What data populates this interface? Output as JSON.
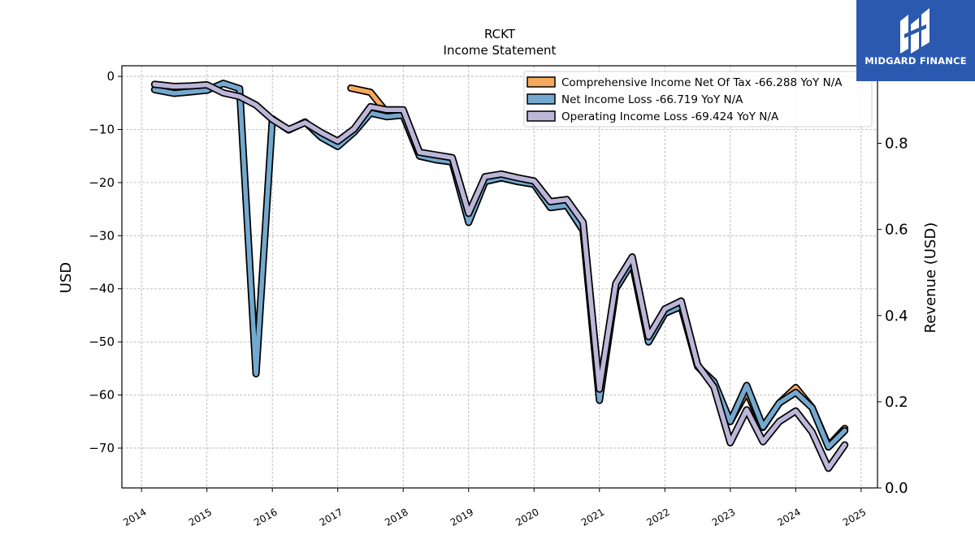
{
  "brand": {
    "name": "MIDGARD FINANCE",
    "logo_color": "#2b59b0"
  },
  "chart_data": {
    "type": "line",
    "title": "RCKT",
    "subtitle": "Income Statement",
    "ylabel": "USD",
    "y2label": "Revenue (USD)",
    "ylim": [
      -77.5,
      2
    ],
    "y2lim": [
      0,
      0.98
    ],
    "xlim": [
      2013.7,
      2025.25
    ],
    "yticks": [
      0,
      -10,
      -20,
      -30,
      -40,
      -50,
      -60,
      -70
    ],
    "y2ticks": [
      0.0,
      0.2,
      0.4,
      0.6,
      0.8
    ],
    "xticks": [
      2014,
      2015,
      2016,
      2017,
      2018,
      2019,
      2020,
      2021,
      2022,
      2023,
      2024,
      2025
    ],
    "grid": true,
    "legend_position": "top-right",
    "series": [
      {
        "name": "Comprehensive Income Net Of Tax  -66.288 YoY N/A",
        "color": "#f6a95c",
        "x": [
          2017.2,
          2017.5,
          2017.75,
          2018.0,
          2018.25,
          2018.5,
          2018.75,
          2019.0,
          2019.25,
          2019.5,
          2019.75,
          2020.0,
          2020.25,
          2020.5,
          2020.75,
          2021.0,
          2021.25,
          2021.5,
          2021.75,
          2022.0,
          2022.25,
          2022.5,
          2022.75,
          2023.0,
          2023.25,
          2023.5,
          2023.75,
          2024.0,
          2024.25,
          2024.5,
          2024.75
        ],
        "values": [
          -2.2,
          -3.0,
          -6.8,
          -7.3,
          -15.0,
          -15.7,
          -16.1,
          -27.0,
          -19.8,
          -19.1,
          -19.8,
          -20.3,
          -24.7,
          -24.3,
          -29.0,
          -60.5,
          -40.0,
          -35.0,
          -50.0,
          -44.6,
          -43.3,
          -54.6,
          -57.8,
          -65.0,
          -59.4,
          -66.1,
          -61.5,
          -58.6,
          -62.4,
          -69.6,
          -66.3
        ]
      },
      {
        "name": "Net Income Loss  -66.719 YoY N/A",
        "color": "#74a9cf",
        "x": [
          2014.2,
          2014.5,
          2014.75,
          2015.0,
          2015.25,
          2015.5,
          2015.75,
          2016.0,
          2016.25,
          2016.5,
          2016.75,
          2017.0,
          2017.25,
          2017.5,
          2017.75,
          2018.0,
          2018.25,
          2018.5,
          2018.75,
          2019.0,
          2019.25,
          2019.5,
          2019.75,
          2020.0,
          2020.25,
          2020.5,
          2020.75,
          2021.0,
          2021.25,
          2021.5,
          2021.75,
          2022.0,
          2022.25,
          2022.5,
          2022.75,
          2023.0,
          2023.25,
          2023.5,
          2023.75,
          2024.0,
          2024.25,
          2024.5,
          2024.75
        ],
        "values": [
          -2.5,
          -3.2,
          -2.9,
          -2.6,
          -1.3,
          -2.3,
          -56.0,
          -8.0,
          -10.1,
          -8.6,
          -11.5,
          -13.2,
          -10.5,
          -6.9,
          -7.6,
          -7.3,
          -15.0,
          -15.7,
          -16.1,
          -27.5,
          -19.8,
          -19.1,
          -19.8,
          -20.3,
          -24.7,
          -24.3,
          -29.0,
          -61.0,
          -40.0,
          -35.0,
          -50.0,
          -44.6,
          -43.3,
          -54.6,
          -57.5,
          -65.0,
          -58.2,
          -66.0,
          -61.5,
          -59.5,
          -62.4,
          -69.8,
          -66.7
        ]
      },
      {
        "name": "Operating Income Loss  -69.424 YoY N/A",
        "color": "#bcb7d9",
        "x": [
          2014.2,
          2014.5,
          2014.75,
          2015.0,
          2015.25,
          2015.5,
          2015.75,
          2016.0,
          2016.25,
          2016.5,
          2016.75,
          2017.0,
          2017.25,
          2017.5,
          2017.75,
          2018.0,
          2018.25,
          2018.5,
          2018.75,
          2019.0,
          2019.25,
          2019.5,
          2019.75,
          2020.0,
          2020.25,
          2020.5,
          2020.75,
          2021.0,
          2021.25,
          2021.5,
          2021.75,
          2022.0,
          2022.25,
          2022.5,
          2022.75,
          2023.0,
          2023.25,
          2023.5,
          2023.75,
          2024.0,
          2024.25,
          2024.5,
          2024.75
        ],
        "values": [
          -1.5,
          -1.9,
          -1.8,
          -1.6,
          -3.1,
          -3.8,
          -5.4,
          -8.1,
          -10.0,
          -8.7,
          -10.6,
          -12.2,
          -9.9,
          -5.7,
          -6.3,
          -6.3,
          -14.3,
          -14.8,
          -15.3,
          -25.8,
          -18.9,
          -18.4,
          -19.1,
          -19.7,
          -23.6,
          -23.2,
          -27.5,
          -58.9,
          -39.0,
          -34.0,
          -49.0,
          -43.8,
          -42.3,
          -54.3,
          -58.5,
          -69.0,
          -62.8,
          -68.8,
          -65.0,
          -63.0,
          -67.0,
          -73.8,
          -69.4
        ]
      }
    ]
  }
}
